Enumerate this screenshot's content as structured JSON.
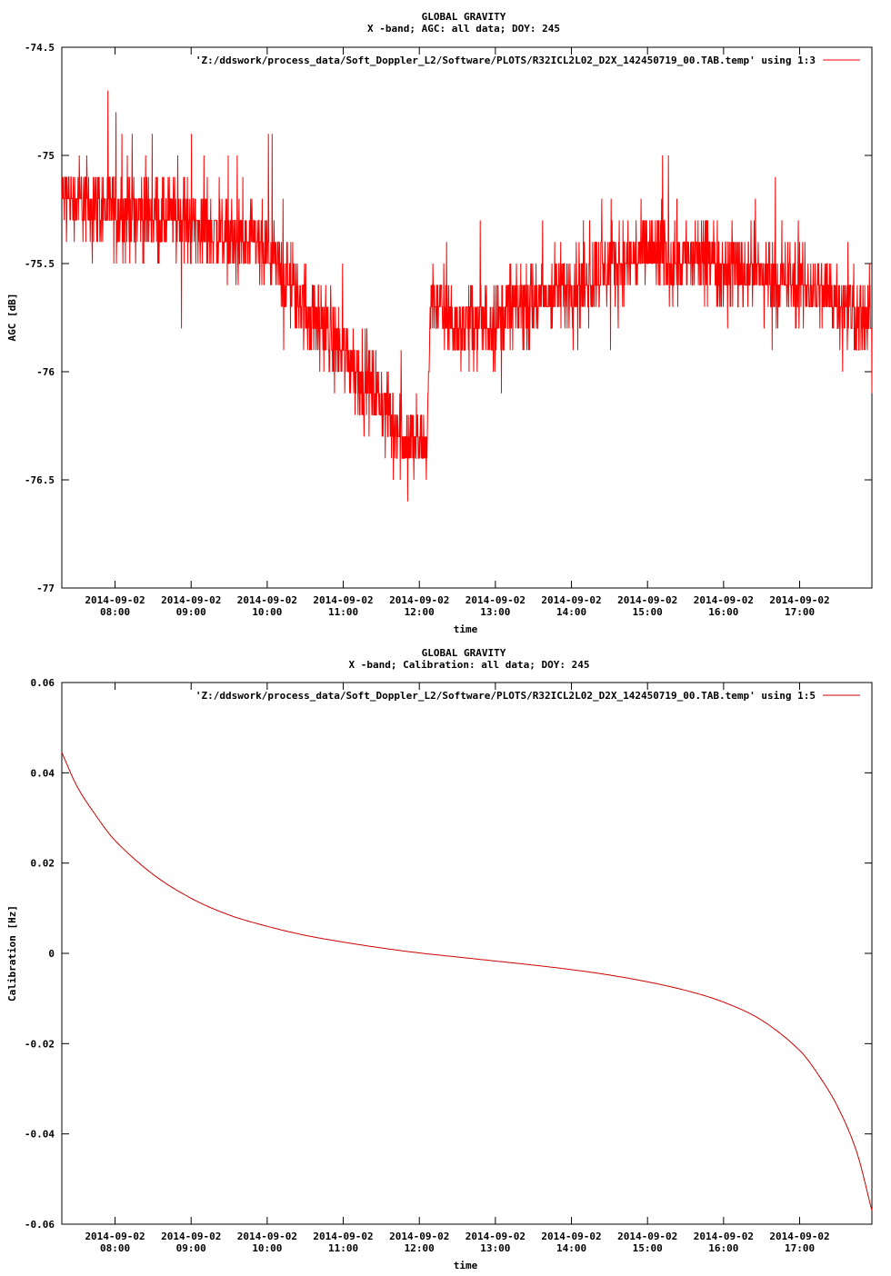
{
  "chart_data": [
    {
      "type": "line",
      "title": "GLOBAL GRAVITY",
      "subtitle": "X -band; AGC: all data; DOY: 245",
      "xlabel": "time",
      "ylabel": "AGC [dB]",
      "ylim": [
        -77,
        -74.5
      ],
      "y_ticks": [
        "-74.5",
        "-75",
        "-75.5",
        "-76",
        "-76.5",
        "-77"
      ],
      "y_tick_values": [
        -74.5,
        -75,
        -75.5,
        -76,
        -76.5,
        -77
      ],
      "x_tick_dates": [
        "2014-09-02",
        "2014-09-02",
        "2014-09-02",
        "2014-09-02",
        "2014-09-02",
        "2014-09-02",
        "2014-09-02",
        "2014-09-02",
        "2014-09-02",
        "2014-09-02"
      ],
      "x_tick_times": [
        "08:00",
        "09:00",
        "10:00",
        "11:00",
        "12:00",
        "13:00",
        "14:00",
        "15:00",
        "16:00",
        "17:00"
      ],
      "x_tick_hours": [
        8,
        9,
        10,
        11,
        12,
        13,
        14,
        15,
        16,
        17
      ],
      "xlim_hours": [
        7.3,
        17.95
      ],
      "grid": false,
      "legend_position": "top-right",
      "series": [
        {
          "name": "'Z:/ddswork/process_data/Soft_Doppler_L2/Software/PLOTS/R32ICL2L02_D2X_142450719_00.TAB.temp' using 1:3",
          "color": "#ff0000",
          "trend_hours": [
            7.3,
            8.0,
            9.0,
            10.0,
            10.5,
            11.0,
            11.5,
            11.8,
            12.1,
            12.15,
            12.5,
            13.0,
            14.0,
            15.0,
            16.0,
            17.0,
            17.5,
            17.95
          ],
          "trend_values": [
            -75.2,
            -75.25,
            -75.3,
            -75.45,
            -75.7,
            -75.9,
            -76.15,
            -76.3,
            -76.35,
            -75.65,
            -75.8,
            -75.75,
            -75.6,
            -75.45,
            -75.5,
            -75.6,
            -75.65,
            -75.8
          ],
          "noise_amplitude_db": 0.28,
          "min_value": -76.7,
          "max_value": -74.7
        }
      ]
    },
    {
      "type": "line",
      "title": "GLOBAL GRAVITY",
      "subtitle": "X -band; Calibration: all data; DOY: 245",
      "xlabel": "time",
      "ylabel": "Calibration [Hz]",
      "ylim": [
        -0.06,
        0.06
      ],
      "y_ticks": [
        "0.06",
        "0.04",
        "0.02",
        "0",
        "-0.02",
        "-0.04",
        "-0.06"
      ],
      "y_tick_values": [
        0.06,
        0.04,
        0.02,
        0,
        -0.02,
        -0.04,
        -0.06
      ],
      "x_tick_dates": [
        "2014-09-02",
        "2014-09-02",
        "2014-09-02",
        "2014-09-02",
        "2014-09-02",
        "2014-09-02",
        "2014-09-02",
        "2014-09-02",
        "2014-09-02",
        "2014-09-02"
      ],
      "x_tick_times": [
        "08:00",
        "09:00",
        "10:00",
        "11:00",
        "12:00",
        "13:00",
        "14:00",
        "15:00",
        "16:00",
        "17:00"
      ],
      "x_tick_hours": [
        8,
        9,
        10,
        11,
        12,
        13,
        14,
        15,
        16,
        17
      ],
      "xlim_hours": [
        7.3,
        17.95
      ],
      "grid": false,
      "legend_position": "top-right",
      "series": [
        {
          "name": "'Z:/ddswork/process_data/Soft_Doppler_L2/Software/PLOTS/R32ICL2L02_D2X_142450719_00.TAB.temp' using 1:5",
          "color": "#cc0000",
          "x_hours": [
            7.3,
            7.5,
            7.75,
            8.0,
            8.5,
            9.0,
            9.5,
            10.0,
            10.5,
            11.0,
            11.5,
            12.0,
            12.5,
            13.0,
            13.5,
            14.0,
            14.5,
            15.0,
            15.5,
            16.0,
            16.5,
            17.0,
            17.25,
            17.5,
            17.75,
            17.95
          ],
          "values": [
            0.0445,
            0.037,
            0.0305,
            0.025,
            0.0175,
            0.0122,
            0.0085,
            0.006,
            0.004,
            0.0025,
            0.0012,
            0.0001,
            -0.0008,
            -0.0017,
            -0.0026,
            -0.0036,
            -0.0048,
            -0.0063,
            -0.0082,
            -0.0108,
            -0.0148,
            -0.0215,
            -0.027,
            -0.034,
            -0.044,
            -0.057
          ]
        }
      ]
    }
  ]
}
